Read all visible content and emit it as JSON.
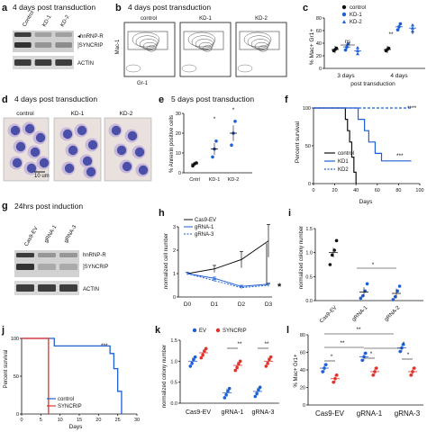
{
  "panels": {
    "a": {
      "letter": "a",
      "title": "4 days post transduction",
      "lanes": [
        "Control",
        "KD-1",
        "KD-2"
      ],
      "band_labels": [
        "hnRNP-R",
        "SYNCRIP",
        "ACTIN"
      ],
      "band_intensity": [
        [
          0.85,
          0.35,
          0.35
        ],
        [
          0.9,
          0.4,
          0.45
        ],
        [
          0.85,
          0.85,
          0.85
        ]
      ]
    },
    "b": {
      "letter": "b",
      "title": "4 days post transduction",
      "plots": [
        "control",
        "KD-1",
        "KD-2"
      ],
      "ylabel": "Mac-1",
      "xlabel": "Gr-1"
    },
    "c": {
      "letter": "c",
      "legend": [
        "control",
        "KD-1",
        "KD-2"
      ],
      "ylabel": "% Mac+ Gr1+",
      "xlabel": "post transduction",
      "groups": [
        "3 days",
        "4 days"
      ],
      "yticks": [
        "0",
        "20",
        "40",
        "60",
        "80"
      ],
      "annotations": [
        "ns",
        "**",
        "*"
      ],
      "chart_data": {
        "type": "scatter",
        "ylim": [
          0,
          80
        ],
        "series": [
          {
            "name": "control",
            "means": [
              30,
              30
            ]
          },
          {
            "name": "KD-1",
            "means": [
              34,
              66
            ]
          },
          {
            "name": "KD-2",
            "means": [
              28,
              64
            ]
          }
        ]
      }
    },
    "d": {
      "letter": "d",
      "title": "4 days post transduction",
      "images": [
        "control",
        "KD-1",
        "KD-2"
      ],
      "scalebar": "10 um"
    },
    "e": {
      "letter": "e",
      "title": "5 days post transduction",
      "ylabel": "% Annexin positive cells",
      "categories": [
        "Cntrl",
        "KD-1",
        "KD-2"
      ],
      "yticks": [
        "0",
        "10",
        "20",
        "30"
      ],
      "annotations": [
        "*",
        "*"
      ],
      "chart_data": {
        "type": "scatter",
        "ylim": [
          0,
          30
        ],
        "categories": [
          "Cntrl",
          "KD-1",
          "KD-2"
        ],
        "means": [
          4.5,
          12,
          20
        ],
        "sem": [
          1,
          3,
          4
        ],
        "points": [
          [
            3.5,
            4.5,
            5
          ],
          [
            8,
            12,
            16
          ],
          [
            14,
            20,
            26
          ]
        ]
      }
    },
    "f": {
      "letter": "f",
      "ylabel": "Percent survival",
      "xlabel": "Days",
      "xticks": [
        "0",
        "20",
        "40",
        "60",
        "80",
        "100"
      ],
      "yticks": [
        "0",
        "50",
        "100"
      ],
      "legend": [
        "control",
        "KD1",
        "KD2"
      ],
      "annotations": [
        "****",
        "***"
      ],
      "chart_data": {
        "type": "line",
        "xlim": [
          0,
          100
        ],
        "ylim": [
          0,
          100
        ],
        "series": [
          {
            "name": "control",
            "x": [
              0,
              28,
              30,
              32,
              34,
              36,
              38,
              40
            ],
            "y": [
              100,
              100,
              85,
              70,
              55,
              35,
              15,
              0
            ]
          },
          {
            "name": "KD1",
            "x": [
              0,
              38,
              42,
              48,
              52,
              58,
              64,
              92
            ],
            "y": [
              100,
              100,
              85,
              70,
              55,
              40,
              30,
              30
            ]
          },
          {
            "name": "KD2",
            "x": [
              0,
              92
            ],
            "y": [
              100,
              100
            ]
          }
        ]
      }
    },
    "g": {
      "letter": "g",
      "title": "24hrs post induction",
      "lanes": [
        "Cas9-EV",
        "gRNA-1",
        "gRNA-3"
      ],
      "band_labels": [
        "hnRNP-R",
        "SYNCRIP",
        "ACTIN"
      ],
      "band_intensity": [
        [
          0.85,
          0.4,
          0.4
        ],
        [
          0.9,
          0.3,
          0.3
        ],
        [
          0.85,
          0.85,
          0.85
        ]
      ]
    },
    "h": {
      "letter": "h",
      "ylabel": "normalized cell number",
      "legend": [
        "Cas9-EV",
        "gRNA-1",
        "gRNA-3"
      ],
      "annotations": [
        "*"
      ],
      "chart_data": {
        "type": "line",
        "categories": [
          "D0",
          "D1",
          "D2",
          "D3"
        ],
        "ylim": [
          0,
          3
        ],
        "yticks": [
          "0",
          "1",
          "2",
          "3"
        ],
        "series": [
          {
            "name": "Cas9-EV",
            "values": [
              1,
              1.2,
              1.6,
              2.4
            ],
            "err": [
              0.05,
              0.15,
              0.35,
              0.7
            ]
          },
          {
            "name": "gRNA-1",
            "values": [
              1,
              0.8,
              0.45,
              0.55
            ],
            "err": [
              0.05,
              0.05,
              0.05,
              0.05
            ]
          },
          {
            "name": "gRNA-3",
            "values": [
              1,
              0.7,
              0.4,
              0.5
            ],
            "err": [
              0.05,
              0.05,
              0.05,
              0.05
            ]
          }
        ]
      }
    },
    "i": {
      "letter": "i",
      "ylabel": "normalized colony number",
      "categories": [
        "Cas9-EV",
        "gRNA-1",
        "gRNA-2"
      ],
      "yticks": [
        "0.0",
        "0.5",
        "1.0",
        "1.5"
      ],
      "annotations": [
        "*"
      ],
      "chart_data": {
        "type": "scatter",
        "ylim": [
          0,
          1.5
        ],
        "means": [
          1.0,
          0.18,
          0.15
        ],
        "points": [
          [
            0.75,
            0.95,
            1.05,
            1.25
          ],
          [
            0.05,
            0.1,
            0.2,
            0.35
          ],
          [
            0.02,
            0.08,
            0.2,
            0.3
          ]
        ]
      }
    },
    "j": {
      "letter": "j",
      "ylabel": "Percent survival",
      "xlabel": "Days",
      "xticks": [
        "0",
        "5",
        "10",
        "15",
        "20",
        "25",
        "30"
      ],
      "yticks": [
        "0",
        "50",
        "100"
      ],
      "legend": [
        "control",
        "SYNCRIP"
      ],
      "annotations": [
        "***"
      ],
      "chart_data": {
        "type": "line",
        "xlim": [
          0,
          30
        ],
        "ylim": [
          0,
          100
        ],
        "series": [
          {
            "name": "control",
            "x": [
              0,
              8,
              8.5,
              21,
              23,
              24,
              25,
              26
            ],
            "y": [
              100,
              100,
              90,
              90,
              80,
              60,
              30,
              0
            ]
          },
          {
            "name": "SYNCRIP",
            "x": [
              0,
              7,
              7
            ],
            "y": [
              100,
              100,
              0
            ]
          }
        ]
      }
    },
    "k": {
      "letter": "k",
      "ylabel": "normalized colony number",
      "legend": [
        "EV",
        "SYNCRIP"
      ],
      "categories": [
        "Cas9-EV",
        "gRNA-1",
        "gRNA-3"
      ],
      "yticks": [
        "0.0",
        "0.5",
        "1.0",
        "1.5"
      ],
      "annotations": [
        "**",
        "**"
      ],
      "chart_data": {
        "type": "scatter",
        "ylim": [
          0,
          1.5
        ],
        "series": [
          {
            "name": "EV",
            "means": [
              1.0,
              0.25,
              0.28
            ]
          },
          {
            "name": "SYNCRIP",
            "means": [
              1.2,
              0.9,
              1.0
            ]
          }
        ]
      }
    },
    "l": {
      "letter": "l",
      "ylabel": "% Mac+ Gr1+",
      "categories": [
        "Cas9-EV",
        "gRNA-1",
        "gRNA-3"
      ],
      "yticks": [
        "0",
        "20",
        "40",
        "60",
        "80"
      ],
      "annotations": [
        "**",
        "**",
        "*",
        "*",
        "*",
        "*"
      ],
      "chart_data": {
        "type": "scatter",
        "ylim": [
          0,
          80
        ],
        "series": [
          {
            "name": "EV",
            "means": [
              42,
              55,
              65
            ]
          },
          {
            "name": "SYNCRIP",
            "means": [
              30,
              38,
              38
            ]
          }
        ]
      }
    }
  },
  "colors": {
    "blue": "#1f5fd6",
    "red": "#e0322b",
    "black": "#111111"
  }
}
